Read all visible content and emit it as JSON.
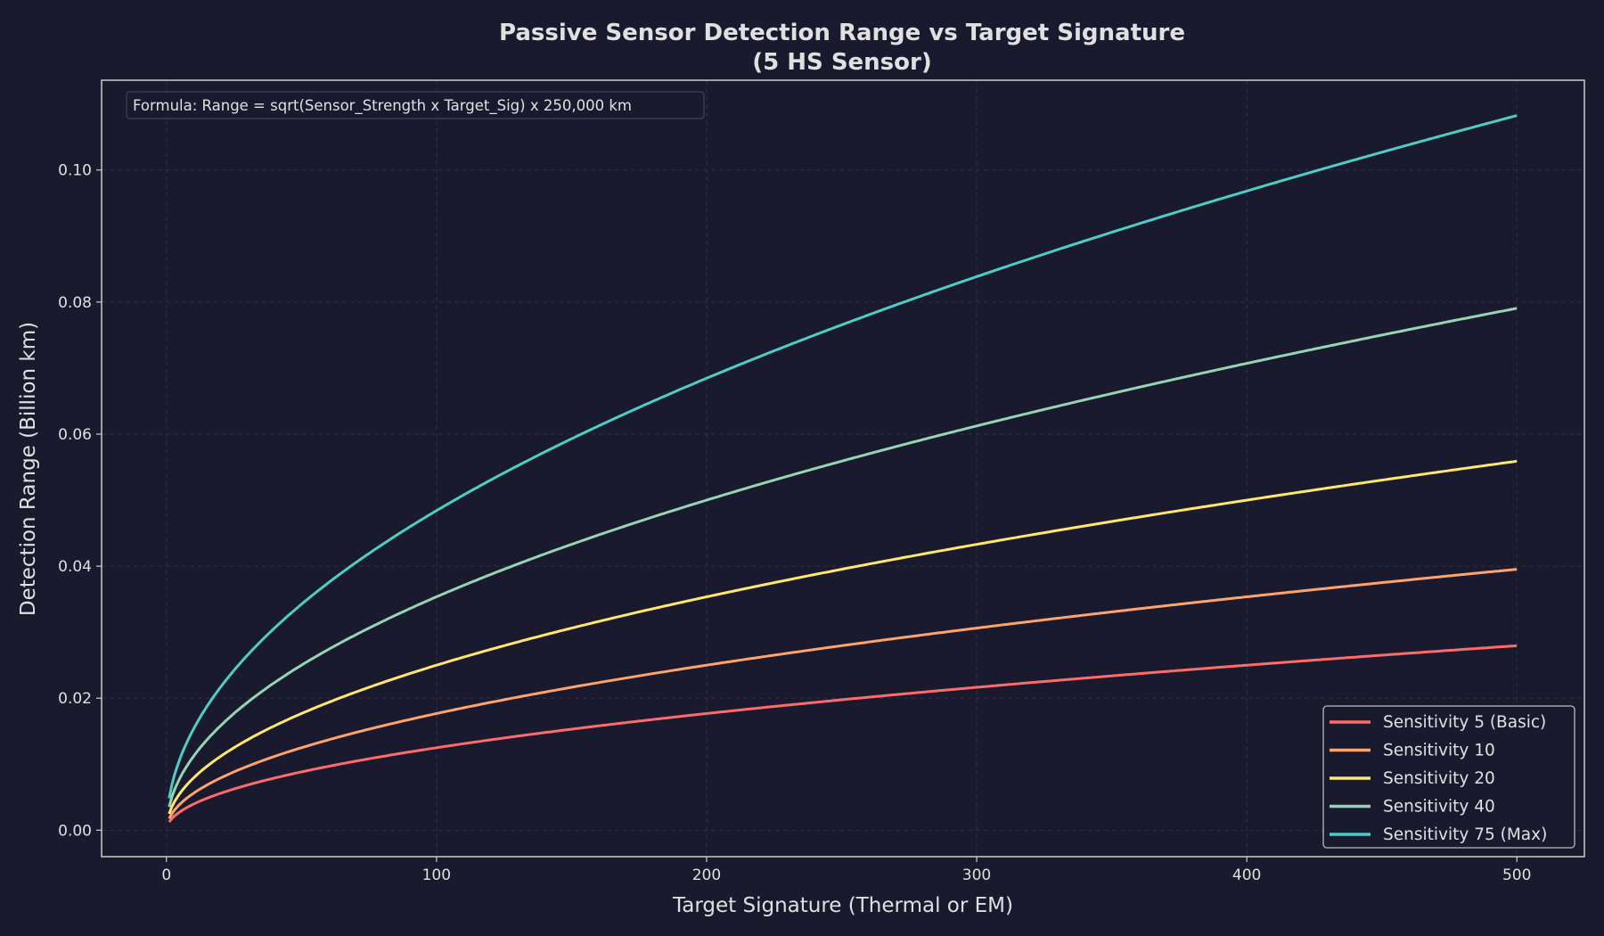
{
  "chart_data": {
    "type": "line",
    "title": "Passive Sensor Detection Range vs Target Signature",
    "subtitle": "(5 HS Sensor)",
    "xlabel": "Target Signature (Thermal or EM)",
    "ylabel": "Detection Range (Billion km)",
    "xlim": [
      -24,
      525
    ],
    "ylim": [
      -0.004,
      0.1136
    ],
    "xticks": [
      0,
      100,
      200,
      300,
      400,
      500
    ],
    "yticks": [
      "0.00",
      "0.02",
      "0.04",
      "0.06",
      "0.08",
      "0.10"
    ],
    "grid": true,
    "legend_placement": "lower-right",
    "annotation": "Formula: Range = sqrt(Sensor_Strength x Target_Sig) x 250,000 km",
    "x": [
      1,
      5,
      10,
      20,
      30,
      50,
      75,
      100,
      150,
      200,
      250,
      300,
      350,
      400,
      450,
      500
    ],
    "series": [
      {
        "name": "Sensitivity 5 (Basic)",
        "color": "#ff6b6b",
        "values": [
          0.00125,
          0.0028,
          0.00395,
          0.00559,
          0.00685,
          0.00884,
          0.01083,
          0.0125,
          0.01531,
          0.01768,
          0.01976,
          0.02165,
          0.02339,
          0.025,
          0.02652,
          0.02795
        ]
      },
      {
        "name": "Sensitivity 10",
        "color": "#ffa36c",
        "values": [
          0.00177,
          0.00395,
          0.00559,
          0.00791,
          0.00968,
          0.0125,
          0.01531,
          0.01768,
          0.02165,
          0.025,
          0.02795,
          0.03062,
          0.03307,
          0.03536,
          0.0375,
          0.03953
        ]
      },
      {
        "name": "Sensitivity 20",
        "color": "#ffe66d",
        "values": [
          0.0025,
          0.00559,
          0.00791,
          0.01118,
          0.01369,
          0.01768,
          0.02165,
          0.025,
          0.03062,
          0.03536,
          0.03953,
          0.0433,
          0.04677,
          0.05,
          0.05303,
          0.0559
        ]
      },
      {
        "name": "Sensitivity 40",
        "color": "#95d5b2",
        "values": [
          0.00354,
          0.00791,
          0.01118,
          0.01581,
          0.01936,
          0.025,
          0.03062,
          0.03536,
          0.0433,
          0.05,
          0.0559,
          0.06124,
          0.06614,
          0.07071,
          0.075,
          0.07906
        ]
      },
      {
        "name": "Sensitivity 75 (Max)",
        "color": "#4ecdc4",
        "values": [
          0.00484,
          0.01083,
          0.01531,
          0.02165,
          0.02652,
          0.03423,
          0.04193,
          0.04841,
          0.05929,
          0.06847,
          0.07655,
          0.08385,
          0.09057,
          0.09682,
          0.1027,
          0.10825
        ]
      }
    ]
  }
}
